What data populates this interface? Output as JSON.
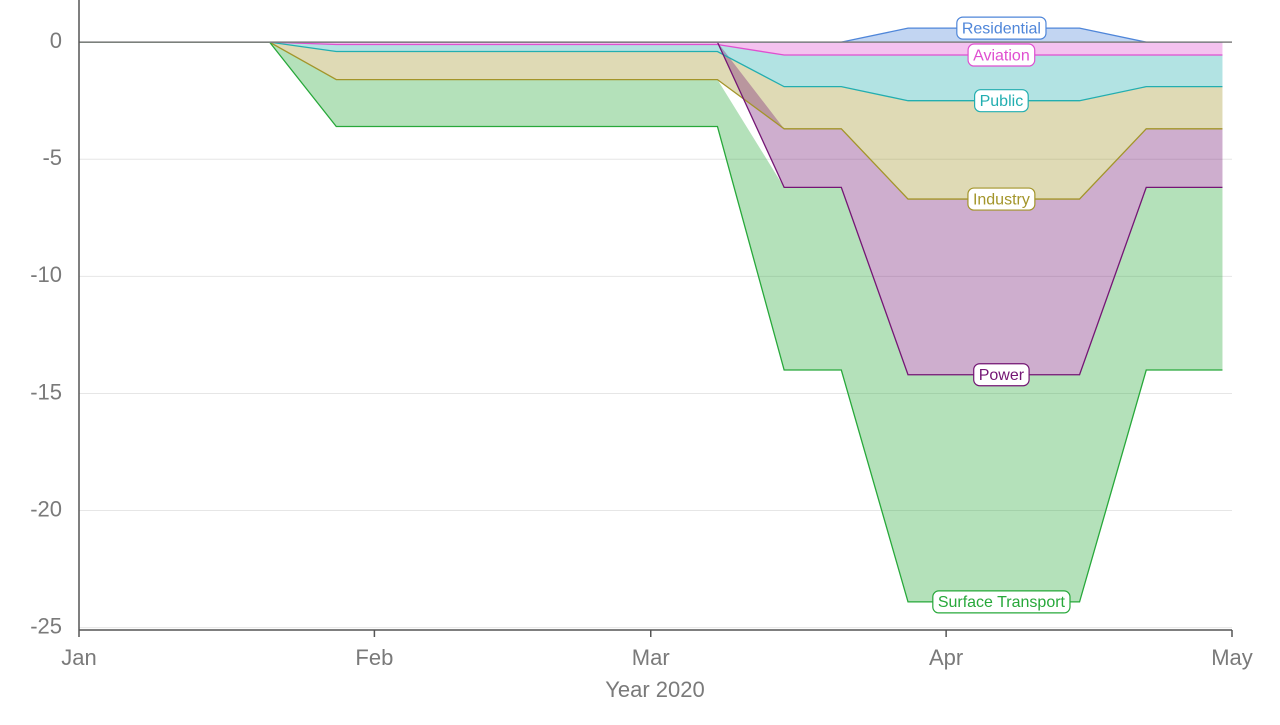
{
  "chart_data": {
    "type": "area",
    "x_label": "Year 2020",
    "x": [
      0,
      20,
      27,
      67,
      74,
      80,
      87,
      105,
      112,
      120
    ],
    "xlim": [
      0,
      121
    ],
    "xticks": [
      {
        "value": 0,
        "label": "Jan"
      },
      {
        "value": 31,
        "label": "Feb"
      },
      {
        "value": 60,
        "label": "Mar"
      },
      {
        "value": 91,
        "label": "Apr"
      },
      {
        "value": 121,
        "label": "May"
      }
    ],
    "ylim": [
      -25.1,
      1.8
    ],
    "yticks": [
      0,
      -5,
      -10,
      -15,
      -20,
      -25
    ],
    "grid": true,
    "stacked": true,
    "series": [
      {
        "name": "Residential",
        "color": "#4f86d9",
        "values": [
          0,
          0,
          0,
          0,
          0,
          0,
          0.6,
          0.6,
          0,
          0
        ]
      },
      {
        "name": "Aviation",
        "color": "#df4fd0",
        "values": [
          0,
          0,
          -0.1,
          -0.1,
          -0.55,
          -0.55,
          -0.55,
          -0.55,
          -0.55,
          -0.55
        ]
      },
      {
        "name": "Public",
        "color": "#22aeb0",
        "values": [
          0,
          0,
          -0.3,
          -0.3,
          -1.35,
          -1.35,
          -1.95,
          -1.95,
          -1.35,
          -1.35
        ]
      },
      {
        "name": "Industry",
        "color": "#a3952a",
        "values": [
          0,
          0,
          -1.2,
          -1.2,
          -1.8,
          -1.8,
          -4.2,
          -4.2,
          -1.8,
          -1.8
        ]
      },
      {
        "name": "Power",
        "color": "#741674",
        "values": [
          0,
          0,
          0,
          0,
          -2.5,
          -2.5,
          -7.5,
          -7.5,
          -2.5,
          -2.5
        ]
      },
      {
        "name": "Surface Transport",
        "color": "#27a83a",
        "values": [
          0,
          0,
          -2.0,
          -2.0,
          -7.8,
          -7.8,
          -9.7,
          -9.7,
          -7.8,
          -7.8
        ]
      }
    ]
  }
}
